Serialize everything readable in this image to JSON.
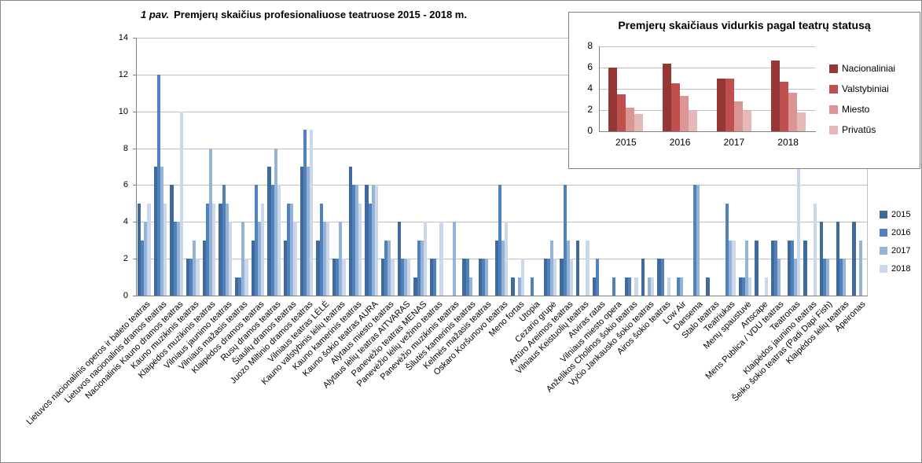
{
  "chart_data": [
    {
      "type": "bar",
      "title_prefix": "1 pav.",
      "title": "Premjerų skaičius profesionaliuose teatruose 2015 - 2018 m.",
      "ylim": [
        0,
        14
      ],
      "yticks": [
        0,
        2,
        4,
        6,
        8,
        10,
        12,
        14
      ],
      "grid": true,
      "legend_position": "right",
      "categories": [
        "Lietuvos nacionalinis operos ir baleto teatras",
        "Lietuvos nacionalinis dramos teatras",
        "Nacionalinis Kauno dramos teatras",
        "Kauno muzikinis teatras",
        "Klaipėdos muzikinis teatras",
        "Vilniaus jaunimo teatras",
        "Vilniaus mažasis teatras",
        "Klaipėdos dramos teatras",
        "Rusų dramos teatras",
        "Šiaulių dramos teatras",
        "Juozo Miltinio dramos teatras",
        "Vilniaus teatras LĖLĖ",
        "Kauno valstybinis lėlių teatras",
        "Kauno kamerinis teatras",
        "Kauno šokio teatras AURA",
        "Alytaus miesto teatras",
        "Alytaus lėlių teatras AITVARAS",
        "Panevėžio teatras MENAS",
        "Panevėžio lėlių vežimo teatras",
        "Panevėžio muzikinis teatras",
        "Šilutės kamerinis teatras",
        "Kelmės mažasis teatras",
        "Oskaro Koršunovo teatras",
        "Meno fortas",
        "Utopia",
        "Cezario grupė",
        "Artūro Areimos teatras",
        "Vilniaus Keistuolių teatras",
        "Atviras ratas",
        "Vilniaus miesto opera",
        "Anželikos Cholinos šokio teatras",
        "Vyčio Jankausko šokio teatras",
        "Airos šokio teatras",
        "Low Air",
        "Dansema",
        "Stalo teatras",
        "Teatriukas",
        "Menų spaustuvė",
        "Artscape",
        "Mens Publica / VDU teatras",
        "Teatronas",
        "Klaipėdos jaunimo teatras",
        "Šeiko šokio teatras (Padi Dapi Fish)",
        "Klaipėdos lėlių teatras",
        "Apeironas"
      ],
      "series": [
        {
          "name": "2015",
          "color": "#40699C",
          "values": [
            5,
            7,
            6,
            2,
            3,
            5,
            1,
            3,
            7,
            3,
            7,
            3,
            2,
            7,
            6,
            2,
            4,
            1,
            2,
            0,
            2,
            2,
            3,
            1,
            0,
            2,
            2,
            3,
            1,
            0,
            1,
            2,
            2,
            0,
            0,
            1,
            0,
            1,
            3,
            3,
            3,
            3,
            4,
            4,
            4
          ]
        },
        {
          "name": "2016",
          "color": "#4F81BD",
          "values": [
            3,
            12,
            4,
            2,
            5,
            6,
            1,
            6,
            6,
            5,
            9,
            5,
            2,
            6,
            5,
            3,
            2,
            3,
            2,
            0,
            2,
            2,
            6,
            0,
            1,
            2,
            6,
            0,
            2,
            1,
            1,
            0,
            2,
            1,
            6,
            0,
            5,
            1,
            0,
            3,
            3,
            0,
            2,
            2,
            0
          ]
        },
        {
          "name": "2017",
          "color": "#95B3D7",
          "values": [
            4,
            7,
            4,
            3,
            8,
            5,
            4,
            4,
            8,
            5,
            7,
            4,
            4,
            6,
            6,
            3,
            2,
            3,
            0,
            4,
            1,
            2,
            3,
            1,
            0,
            3,
            3,
            0,
            0,
            0,
            0,
            1,
            0,
            1,
            6,
            0,
            3,
            3,
            0,
            2,
            2,
            0,
            2,
            2,
            3
          ]
        },
        {
          "name": "2018",
          "color": "#CBD8EC",
          "values": [
            5,
            5,
            10,
            2,
            5,
            4,
            2,
            5,
            6,
            4,
            9,
            4,
            2,
            5,
            6,
            2,
            2,
            4,
            4,
            0,
            0,
            0,
            4,
            2,
            0,
            2,
            2,
            3,
            0,
            0,
            1,
            1,
            1,
            0,
            0,
            0,
            3,
            1,
            1,
            0,
            7,
            5,
            0,
            0,
            0
          ]
        }
      ]
    },
    {
      "type": "bar",
      "title": "Premjerų skaičiaus vidurkis pagal teatrų statusą",
      "ylim": [
        0,
        8
      ],
      "yticks": [
        0,
        2,
        4,
        6,
        8
      ],
      "grid": true,
      "legend_position": "right",
      "categories": [
        "2015",
        "2016",
        "2017",
        "2018"
      ],
      "series": [
        {
          "name": "Nacionaliniai",
          "color": "#953735",
          "values": [
            6.0,
            6.4,
            5.0,
            6.7
          ]
        },
        {
          "name": "Valstybiniai",
          "color": "#C0504D",
          "values": [
            3.5,
            4.5,
            5.0,
            4.7
          ]
        },
        {
          "name": "Miesto",
          "color": "#D99694",
          "values": [
            2.2,
            3.3,
            2.8,
            3.6
          ]
        },
        {
          "name": "Privatūs",
          "color": "#E6B9B8",
          "values": [
            1.6,
            1.9,
            1.9,
            1.8
          ]
        }
      ]
    }
  ],
  "colors": {
    "gridline": "#BFBFBF",
    "axis": "#808080",
    "background": "#FFFFFF",
    "border": "#898989"
  }
}
